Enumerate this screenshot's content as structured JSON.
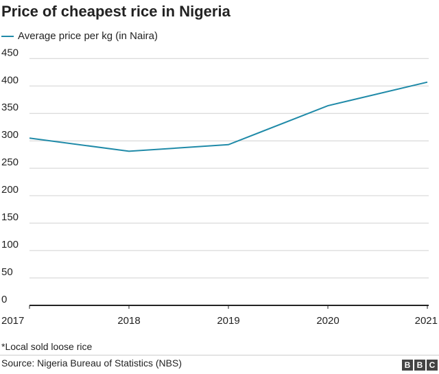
{
  "chart_data": {
    "type": "line",
    "title": "Price of cheapest rice in Nigeria",
    "x": [
      "2017",
      "2018",
      "2019",
      "2020",
      "2021"
    ],
    "series": [
      {
        "name": "Average price per kg (in Naira)",
        "values": [
          305,
          281,
          293,
          364,
          407
        ],
        "color": "#1f8aa8"
      }
    ],
    "ylim": [
      0,
      450
    ],
    "yticks": [
      0,
      50,
      100,
      150,
      200,
      250,
      300,
      350,
      400,
      450
    ],
    "grid": true,
    "legend": "top-left",
    "note": "*Local sold loose rice",
    "source": "Source: Nigeria Bureau of Statistics (NBS)"
  },
  "logo": [
    "B",
    "B",
    "C"
  ]
}
